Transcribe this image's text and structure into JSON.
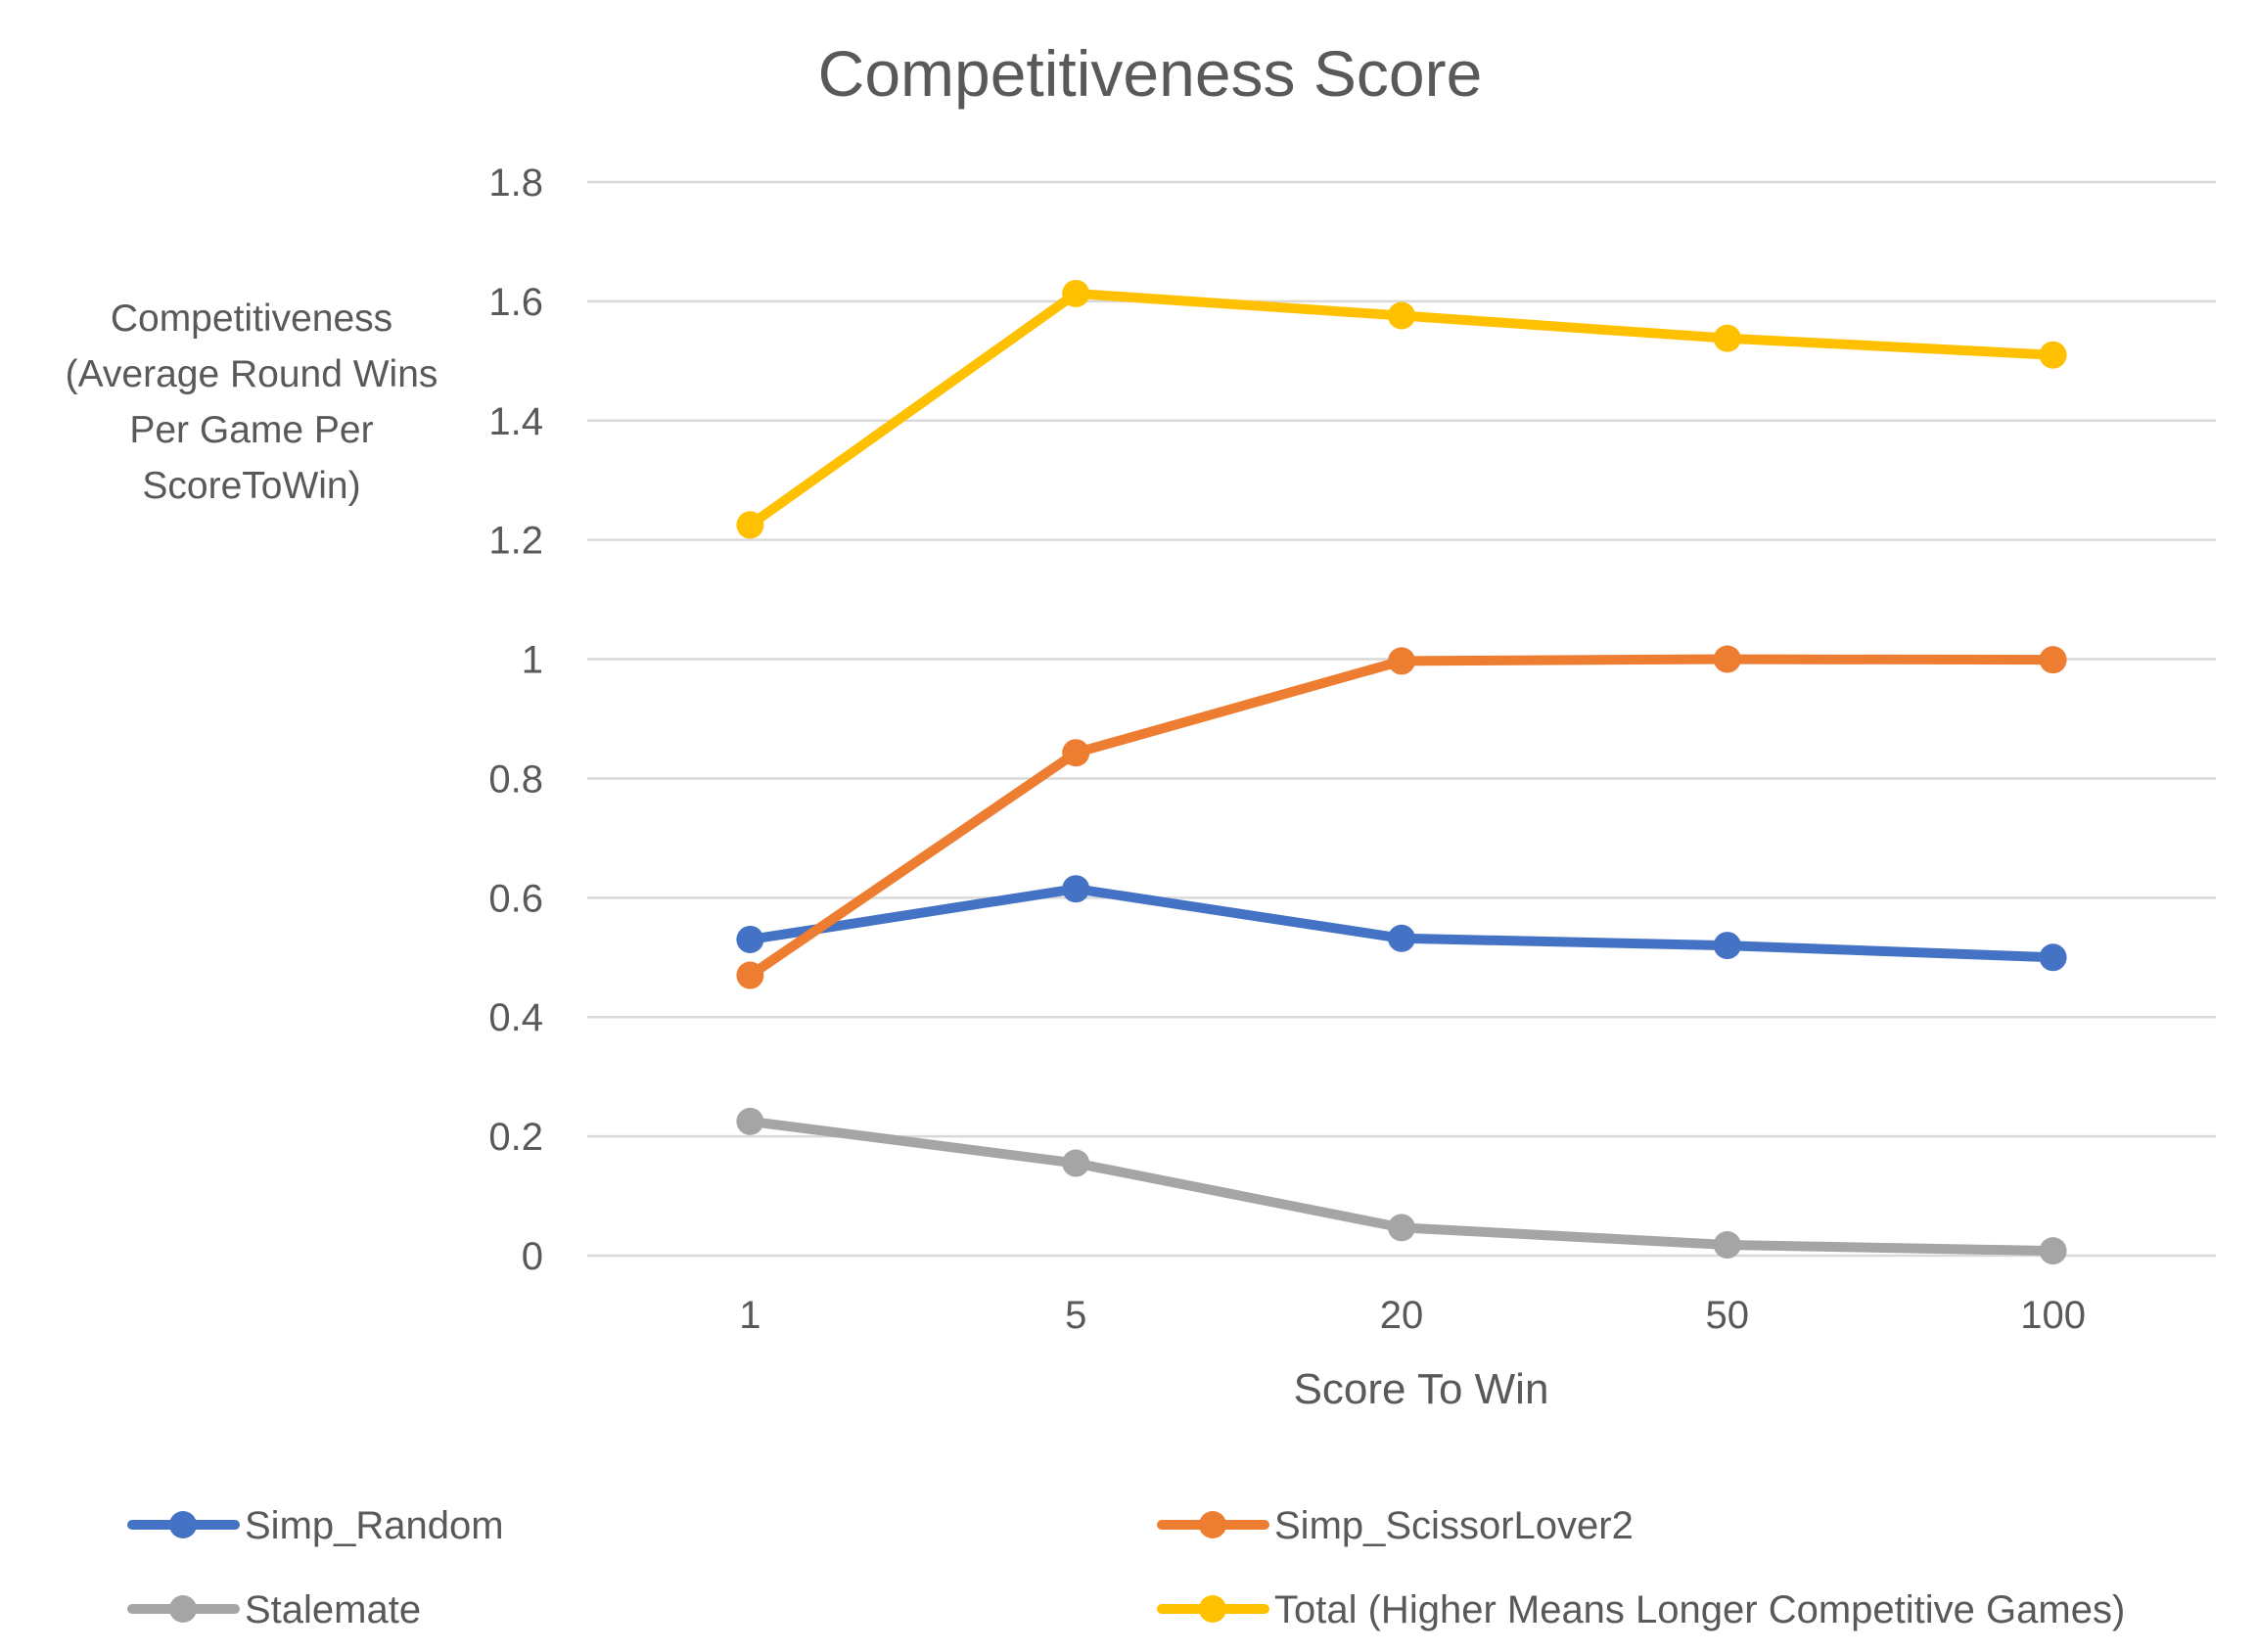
{
  "chart_data": {
    "type": "line",
    "title": "Competitiveness Score",
    "xlabel": "Score To Win",
    "ylabel_lines": [
      "Competitiveness",
      "(Average Round Wins",
      "Per Game Per",
      "ScoreToWin)"
    ],
    "categories": [
      "1",
      "5",
      "20",
      "50",
      "100"
    ],
    "ylim": [
      0,
      1.8
    ],
    "yticks": [
      "0",
      "0.2",
      "0.4",
      "0.6",
      "0.8",
      "1",
      "1.2",
      "1.4",
      "1.6",
      "1.8"
    ],
    "grid": true,
    "legend_position": "bottom",
    "series": [
      {
        "name": "Simp_Random",
        "color": "#4472C4",
        "values": [
          0.53,
          0.615,
          0.532,
          0.52,
          0.5
        ]
      },
      {
        "name": "Simp_ScissorLover2",
        "color": "#ED7D31",
        "values": [
          0.47,
          0.843,
          0.997,
          1.0,
          0.999
        ]
      },
      {
        "name": "Stalemate",
        "color": "#A5A5A5",
        "values": [
          0.225,
          0.155,
          0.047,
          0.018,
          0.008
        ]
      },
      {
        "name": "Total (Higher Means Longer Competitive Games)",
        "color": "#FFC000",
        "values": [
          1.225,
          1.613,
          1.576,
          1.538,
          1.51
        ]
      }
    ]
  }
}
